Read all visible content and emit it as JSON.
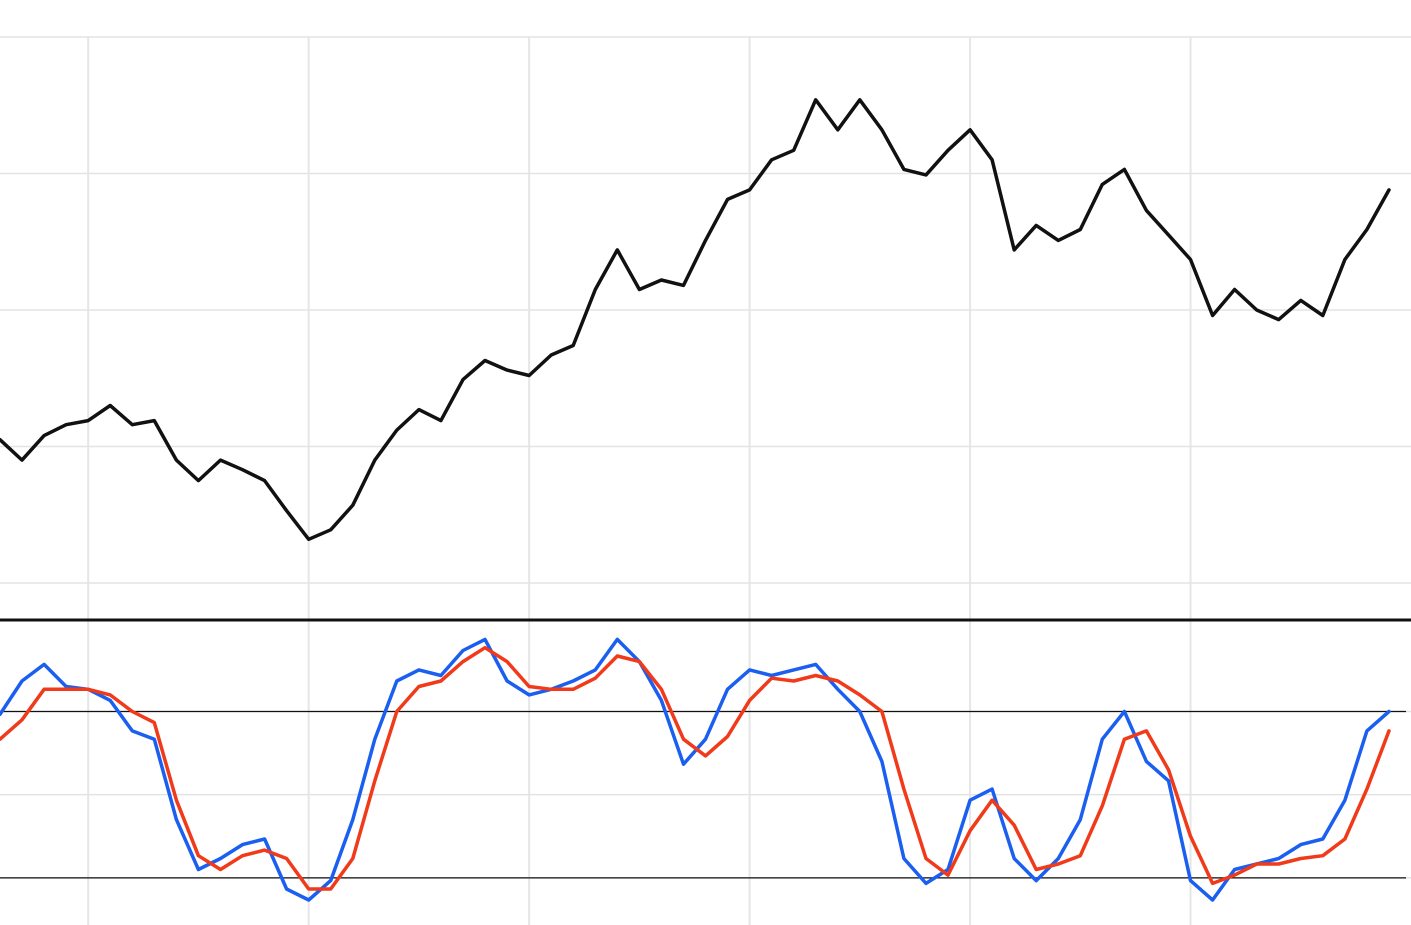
{
  "chart_data": [
    {
      "type": "line",
      "x": [
        0,
        1,
        2,
        3,
        4,
        5,
        6,
        7,
        8,
        9,
        10,
        11,
        12,
        13,
        14,
        15,
        16,
        17,
        18,
        19,
        20,
        21,
        22,
        23,
        24,
        25,
        26,
        27,
        28,
        29,
        30,
        31,
        32,
        33,
        34,
        35,
        36,
        37,
        38,
        39,
        40,
        41,
        42,
        43,
        44,
        45,
        46,
        47,
        48,
        49,
        50,
        51,
        52,
        53,
        54,
        55,
        56,
        57,
        58,
        59,
        60,
        61,
        62,
        63
      ],
      "series": [
        {
          "color": "#111111",
          "values": [
            110.5,
            109.0,
            110.8,
            111.6,
            111.9,
            113.0,
            111.6,
            111.9,
            109.0,
            107.5,
            109.0,
            108.3,
            107.5,
            105.3,
            103.2,
            103.9,
            105.7,
            109.0,
            111.2,
            112.7,
            111.9,
            114.9,
            116.3,
            115.6,
            115.2,
            116.7,
            117.4,
            121.5,
            124.4,
            121.5,
            122.2,
            121.8,
            125.1,
            128.1,
            128.8,
            131.0,
            131.7,
            135.4,
            133.2,
            135.4,
            133.2,
            130.3,
            129.9,
            131.7,
            133.2,
            131.0,
            124.4,
            126.2,
            125.1,
            125.9,
            129.2,
            130.3,
            127.3,
            125.5,
            123.7,
            119.6,
            121.5,
            120.0,
            119.3,
            120.7,
            119.6,
            123.7,
            125.9,
            128.8
          ]
        }
      ],
      "xlim": [
        0,
        64
      ],
      "xticks": [
        4,
        14,
        24,
        34,
        44,
        54
      ],
      "ylim": [
        100,
        140
      ],
      "yticks": [
        100,
        110,
        120,
        130,
        140
      ],
      "grid": true
    },
    {
      "type": "line",
      "x": [
        0,
        1,
        2,
        3,
        4,
        5,
        6,
        7,
        8,
        9,
        10,
        11,
        12,
        13,
        14,
        15,
        16,
        17,
        18,
        19,
        20,
        21,
        22,
        23,
        24,
        25,
        26,
        27,
        28,
        29,
        30,
        31,
        32,
        33,
        34,
        35,
        36,
        37,
        38,
        39,
        40,
        41,
        42,
        43,
        44,
        45,
        46,
        47,
        48,
        49,
        50,
        51,
        52,
        53,
        54,
        55,
        56,
        57,
        58,
        59,
        60,
        61,
        62,
        63
      ],
      "series": [
        {
          "color": "#1a5ff0",
          "values": [
            79,
            91,
            97,
            89,
            88,
            84,
            73,
            70,
            41,
            23,
            27,
            32,
            34,
            16,
            12,
            19,
            41,
            70,
            91,
            95,
            93,
            102,
            106,
            91,
            86,
            88,
            91,
            95,
            106,
            98,
            84,
            61,
            70,
            88,
            95,
            93,
            95,
            97,
            88,
            80,
            62,
            27,
            18,
            23,
            48,
            52,
            27,
            19,
            27,
            41,
            70,
            80,
            62,
            55,
            19,
            12,
            23,
            25,
            27,
            32,
            34,
            48,
            73,
            80
          ]
        },
        {
          "color": "#f03a1a",
          "values": [
            70,
            77,
            88,
            88,
            88,
            86,
            80,
            76,
            48,
            28,
            23,
            28,
            30,
            27,
            16,
            16,
            27,
            55,
            80,
            89,
            91,
            98,
            103,
            98,
            89,
            88,
            88,
            92,
            100,
            98,
            88,
            70,
            64,
            71,
            84,
            92,
            91,
            93,
            91,
            86,
            80,
            52,
            27,
            21,
            37,
            48,
            39,
            23,
            25,
            28,
            46,
            70,
            73,
            59,
            35,
            18,
            21,
            25,
            25,
            27,
            28,
            34,
            52,
            73
          ]
        }
      ],
      "xlim": [
        0,
        64
      ],
      "xticks": [
        4,
        14,
        24,
        34,
        44,
        54
      ],
      "ylim": [
        3,
        113
      ],
      "yticks": [
        20,
        50,
        80
      ],
      "ref_lines": [
        20,
        80
      ],
      "grid": true
    }
  ]
}
